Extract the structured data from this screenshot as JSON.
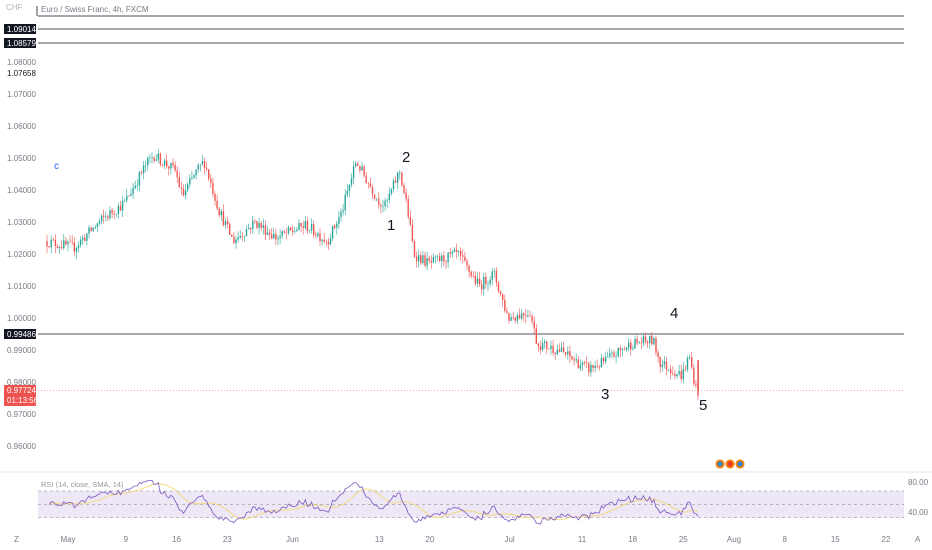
{
  "header": {
    "currency": "CHF",
    "title": "Euro / Swiss Franc, 4h, FXCM"
  },
  "price_axis": {
    "ticks": [
      "1.08000",
      "1.07000",
      "1.06000",
      "1.05000",
      "1.04000",
      "1.03000",
      "1.02000",
      "1.01000",
      "1.00000",
      "0.99000",
      "0.98000",
      "0.97000",
      "0.96000"
    ],
    "dark_tags": [
      "1.09014",
      "1.08579"
    ],
    "plain_tag": "1.07658",
    "level_tag": "0.99486",
    "last_price": "0.97724",
    "countdown": "01:13:56"
  },
  "time_axis": {
    "labels": [
      "May",
      "9",
      "16",
      "23",
      "Jun",
      "13",
      "20",
      "Jul",
      "11",
      "18",
      "25",
      "Aug",
      "8",
      "15",
      "22"
    ]
  },
  "wave_labels": [
    "c",
    "1",
    "2",
    "3",
    "4",
    "5"
  ],
  "rsi": {
    "label": "RSI (14, close, SMA, 14)",
    "ticks": [
      "80.00",
      "40.00"
    ]
  },
  "corner_labels": {
    "left": "Z",
    "right": "A"
  },
  "colors": {
    "up": "#26a69a",
    "down": "#ef5350",
    "level_line": "#131722",
    "last_price": "#ef5350",
    "rsi_line": "#7e57c2",
    "rsi_ma": "#f5d766",
    "rsi_band": "#ede7f6"
  },
  "chart_data": {
    "type": "candlestick",
    "symbol": "EURCHF",
    "timeframe": "4h",
    "ylim": [
      0.955,
      1.092
    ],
    "horizontal_levels": [
      1.09014,
      1.08579,
      0.99486
    ],
    "last_price": 0.97724,
    "path": [
      {
        "date": "2022-04-28",
        "price": 1.024
      },
      {
        "date": "2022-05-02",
        "price": 1.022
      },
      {
        "date": "2022-05-06",
        "price": 1.031
      },
      {
        "date": "2022-05-09",
        "price": 1.036
      },
      {
        "date": "2022-05-12",
        "price": 1.048
      },
      {
        "date": "2022-05-13",
        "price": 1.051
      },
      {
        "date": "2022-05-16",
        "price": 1.046
      },
      {
        "date": "2022-05-17",
        "price": 1.038
      },
      {
        "date": "2022-05-19",
        "price": 1.046
      },
      {
        "date": "2022-05-20",
        "price": 1.049
      },
      {
        "date": "2022-05-22",
        "price": 1.034
      },
      {
        "date": "2022-05-24",
        "price": 1.024
      },
      {
        "date": "2022-05-27",
        "price": 1.03
      },
      {
        "date": "2022-05-30",
        "price": 1.025
      },
      {
        "date": "2022-06-03",
        "price": 1.029
      },
      {
        "date": "2022-06-06",
        "price": 1.024
      },
      {
        "date": "2022-06-08",
        "price": 1.033
      },
      {
        "date": "2022-06-10",
        "price": 1.049
      },
      {
        "date": "2022-06-13",
        "price": 1.037
      },
      {
        "date": "2022-06-14",
        "price": 1.035
      },
      {
        "date": "2022-06-16",
        "price": 1.046
      },
      {
        "date": "2022-06-17",
        "price": 1.035
      },
      {
        "date": "2022-06-18",
        "price": 1.02
      },
      {
        "date": "2022-06-20",
        "price": 1.017
      },
      {
        "date": "2022-06-24",
        "price": 1.02
      },
      {
        "date": "2022-06-27",
        "price": 1.01
      },
      {
        "date": "2022-06-29",
        "price": 1.014
      },
      {
        "date": "2022-07-01",
        "price": 1.0
      },
      {
        "date": "2022-07-04",
        "price": 1.002
      },
      {
        "date": "2022-07-05",
        "price": 0.992
      },
      {
        "date": "2022-07-08",
        "price": 0.99
      },
      {
        "date": "2022-07-12",
        "price": 0.984
      },
      {
        "date": "2022-07-14",
        "price": 0.986
      },
      {
        "date": "2022-07-18",
        "price": 0.992
      },
      {
        "date": "2022-07-21",
        "price": 0.993
      },
      {
        "date": "2022-07-22",
        "price": 0.986
      },
      {
        "date": "2022-07-25",
        "price": 0.982
      },
      {
        "date": "2022-07-26",
        "price": 0.988
      },
      {
        "date": "2022-07-27",
        "price": 0.9772
      }
    ],
    "rsi_ylim": [
      20,
      90
    ],
    "rsi_bands": [
      70,
      30
    ]
  }
}
